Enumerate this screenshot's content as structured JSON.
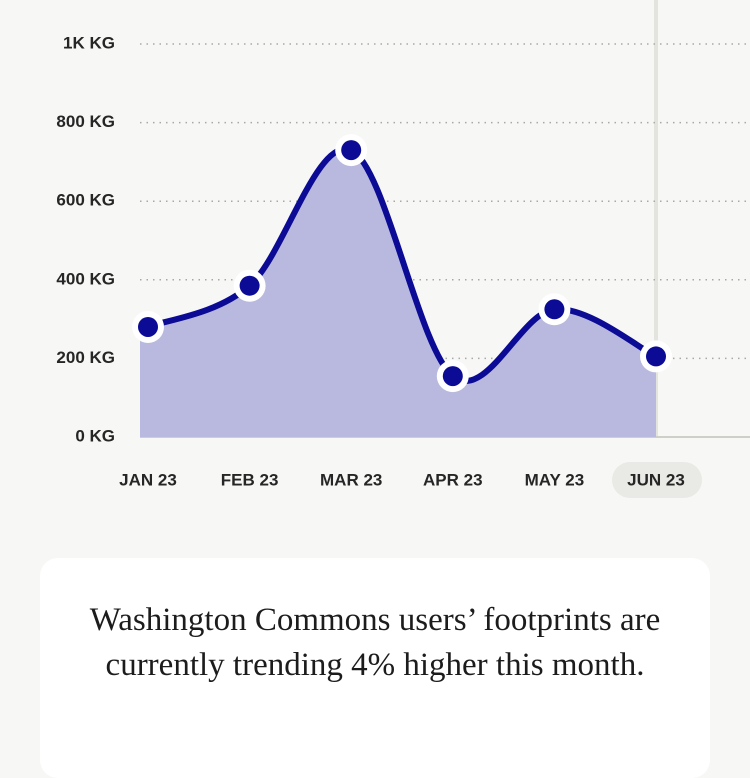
{
  "chart_data": {
    "type": "line",
    "categories": [
      "JAN 23",
      "FEB 23",
      "MAR 23",
      "APR 23",
      "MAY 23",
      "JUN 23"
    ],
    "values": [
      280,
      385,
      730,
      155,
      325,
      205
    ],
    "color": "#0b0b96",
    "area_color": "#b9b9df",
    "ylim": [
      0,
      1000
    ],
    "yticks": [
      {
        "value": 0,
        "label": "0 KG"
      },
      {
        "value": 200,
        "label": "200 KG"
      },
      {
        "value": 400,
        "label": "400 KG"
      },
      {
        "value": 600,
        "label": "600 KG"
      },
      {
        "value": 800,
        "label": "800 KG"
      },
      {
        "value": 1000,
        "label": "1K KG"
      }
    ],
    "grid": true
  },
  "card": {
    "text": "Washington Commons users’ footprints are currently trending 4% higher this month."
  }
}
